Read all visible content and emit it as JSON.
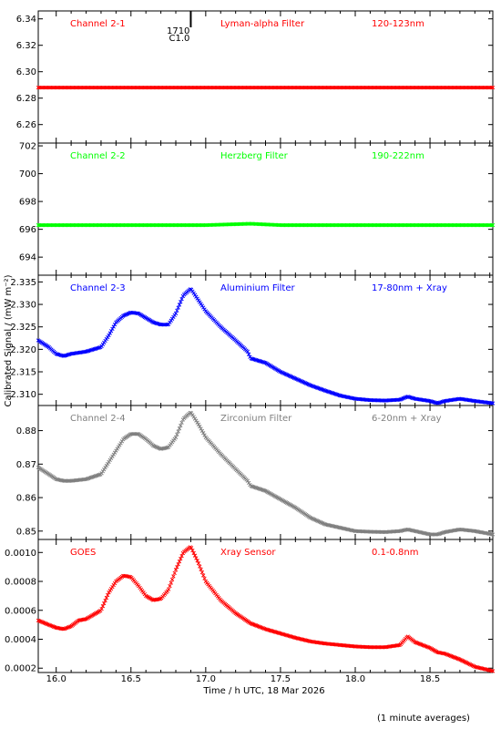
{
  "chart_data": {
    "type": "scatter",
    "xlabel": "Time / h UTC, 18 Mar 2026",
    "ylabel": "Calibrated Signal / (mW m⁻²)",
    "footnote": "(1 minute averages)",
    "xlim": [
      15.88,
      18.92
    ],
    "xticks": [
      "16.0",
      "16.5",
      "17.0",
      "17.5",
      "18.0",
      "18.5"
    ],
    "flare_marker": {
      "time": 16.9,
      "label_time": "1710",
      "label_class": "C1.0"
    },
    "panels": [
      {
        "channel": "Channel 2-1",
        "filter": "Lyman-alpha Filter",
        "band": "120-123nm",
        "color": "#ff0000",
        "ylim": [
          6.246,
          6.346
        ],
        "yticks": [
          "6.34",
          "6.32",
          "6.30",
          "6.28",
          "6.26"
        ],
        "x": [
          15.88,
          16.5,
          17.0,
          17.5,
          18.0,
          18.5,
          18.92
        ],
        "y": [
          6.288,
          6.288,
          6.288,
          6.288,
          6.288,
          6.288,
          6.288
        ]
      },
      {
        "channel": "Channel 2-2",
        "filter": "Herzberg Filter",
        "band": "190-222nm",
        "color": "#00ff00",
        "ylim": [
          692.7,
          702.2
        ],
        "yticks": [
          "702",
          "700",
          "698",
          "696",
          "694"
        ],
        "x": [
          15.88,
          16.5,
          17.0,
          17.3,
          17.5,
          18.0,
          18.5,
          18.92
        ],
        "y": [
          696.3,
          696.3,
          696.3,
          696.4,
          696.3,
          696.3,
          696.3,
          696.3
        ]
      },
      {
        "channel": "Channel 2-3",
        "filter": "Aluminium Filter",
        "band": "17-80nm + Xray",
        "color": "#0000ff",
        "ylim": [
          2.3075,
          2.3365
        ],
        "yticks": [
          "2.335",
          "2.330",
          "2.325",
          "2.320",
          "2.315",
          "2.310"
        ],
        "x": [
          15.88,
          15.95,
          16.0,
          16.05,
          16.1,
          16.2,
          16.3,
          16.35,
          16.4,
          16.45,
          16.5,
          16.55,
          16.6,
          16.65,
          16.7,
          16.75,
          16.8,
          16.85,
          16.9,
          16.95,
          17.0,
          17.1,
          17.2,
          17.28,
          17.3,
          17.4,
          17.5,
          17.6,
          17.7,
          17.8,
          17.9,
          18.0,
          18.1,
          18.2,
          18.3,
          18.35,
          18.4,
          18.5,
          18.55,
          18.6,
          18.7,
          18.8,
          18.92
        ],
        "y": [
          2.322,
          2.3205,
          2.319,
          2.3185,
          2.319,
          2.3195,
          2.3205,
          2.323,
          2.326,
          2.3275,
          2.3282,
          2.328,
          2.327,
          2.326,
          2.3255,
          2.3255,
          2.328,
          2.332,
          2.3335,
          2.331,
          2.3285,
          2.325,
          2.322,
          2.3195,
          2.318,
          2.317,
          2.315,
          2.3135,
          2.312,
          2.3108,
          2.3097,
          2.309,
          2.3087,
          2.3086,
          2.3088,
          2.3095,
          2.309,
          2.3085,
          2.308,
          2.3085,
          2.309,
          2.3085,
          2.308
        ]
      },
      {
        "channel": "Channel 2-4",
        "filter": "Zirconium Filter",
        "band": "6-20nm + Xray",
        "color": "#808080",
        "ylim": [
          0.8475,
          0.8875
        ],
        "yticks": [
          "0.88",
          "0.87",
          "0.86",
          "0.85"
        ],
        "x": [
          15.88,
          15.95,
          16.0,
          16.05,
          16.1,
          16.2,
          16.3,
          16.35,
          16.4,
          16.45,
          16.5,
          16.55,
          16.6,
          16.65,
          16.7,
          16.75,
          16.8,
          16.85,
          16.9,
          16.95,
          17.0,
          17.1,
          17.2,
          17.28,
          17.3,
          17.4,
          17.5,
          17.6,
          17.7,
          17.8,
          17.9,
          18.0,
          18.1,
          18.2,
          18.3,
          18.35,
          18.4,
          18.5,
          18.55,
          18.6,
          18.7,
          18.8,
          18.92
        ],
        "y": [
          0.869,
          0.867,
          0.8655,
          0.865,
          0.865,
          0.8655,
          0.867,
          0.8705,
          0.874,
          0.8775,
          0.879,
          0.879,
          0.8775,
          0.8755,
          0.8745,
          0.875,
          0.878,
          0.8835,
          0.8855,
          0.882,
          0.878,
          0.873,
          0.8685,
          0.865,
          0.8635,
          0.862,
          0.8595,
          0.857,
          0.854,
          0.852,
          0.851,
          0.85,
          0.8498,
          0.8497,
          0.85,
          0.8505,
          0.85,
          0.849,
          0.849,
          0.8497,
          0.8505,
          0.85,
          0.849
        ]
      },
      {
        "channel": "GOES",
        "filter": "Xray Sensor",
        "band": "0.1-0.8nm",
        "color": "#ff0000",
        "ylim": [
          0.00017,
          0.00109
        ],
        "yticks": [
          "0.0010",
          "0.0008",
          "0.0006",
          "0.0004",
          "0.0002"
        ],
        "x": [
          15.88,
          15.95,
          16.0,
          16.05,
          16.1,
          16.15,
          16.2,
          16.3,
          16.35,
          16.4,
          16.45,
          16.5,
          16.55,
          16.6,
          16.65,
          16.7,
          16.75,
          16.8,
          16.85,
          16.9,
          16.95,
          17.0,
          17.1,
          17.2,
          17.3,
          17.4,
          17.5,
          17.6,
          17.7,
          17.8,
          17.9,
          18.0,
          18.1,
          18.2,
          18.3,
          18.35,
          18.4,
          18.5,
          18.55,
          18.6,
          18.7,
          18.8,
          18.92
        ],
        "y": [
          0.00053,
          0.0005,
          0.00048,
          0.00047,
          0.00049,
          0.00053,
          0.00054,
          0.0006,
          0.00072,
          0.0008,
          0.00084,
          0.00083,
          0.00077,
          0.0007,
          0.00067,
          0.00068,
          0.00074,
          0.00088,
          0.001,
          0.00104,
          0.00093,
          0.0008,
          0.00067,
          0.00058,
          0.00051,
          0.00047,
          0.00044,
          0.00041,
          0.000385,
          0.00037,
          0.00036,
          0.00035,
          0.000345,
          0.000345,
          0.00036,
          0.00042,
          0.00038,
          0.00034,
          0.00031,
          0.0003,
          0.00026,
          0.00021,
          0.00018
        ]
      }
    ]
  }
}
